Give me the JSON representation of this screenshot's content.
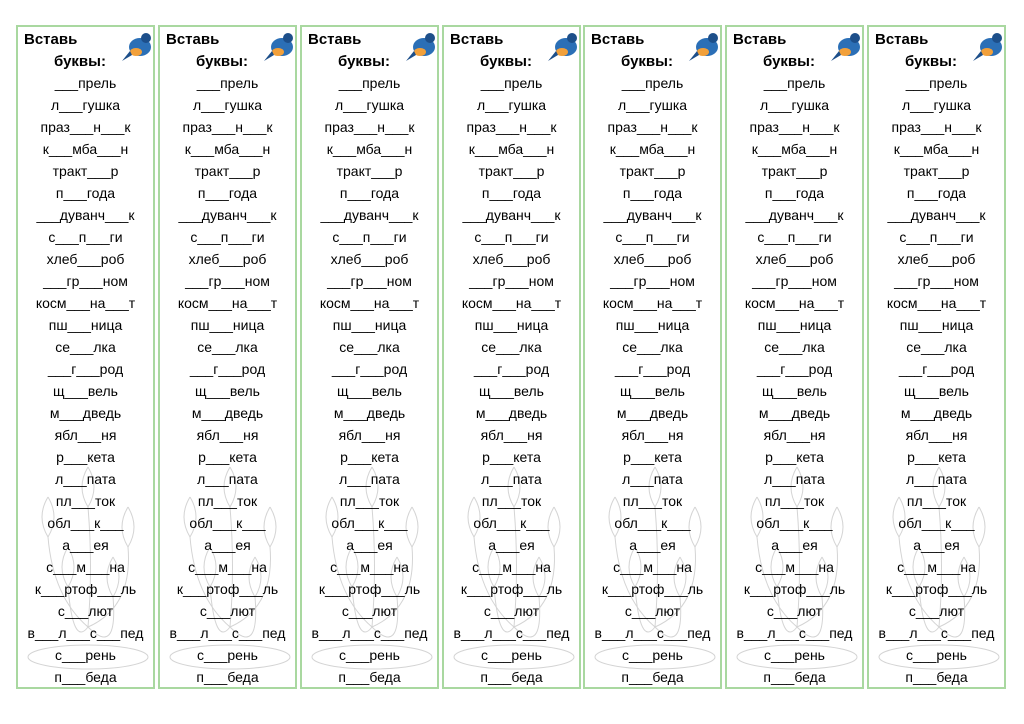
{
  "card": {
    "title_line1": "Вставь",
    "title_line2": "буквы:",
    "words": [
      "___прель",
      "л___гушка",
      "праз___н___к",
      "к___мба___н",
      "тракт___р",
      "п___года",
      "___дуванч___к",
      "с___п___ги",
      "хлеб___роб",
      "___гр___ном",
      "косм___на___т",
      "пш___ница",
      "се___лка",
      "___г___род",
      "щ___вель",
      "м___дведь",
      "ябл___ня",
      "р___кета",
      "л___пата",
      "пл___ток",
      "обл___к___",
      "а___ея",
      "с___м___на",
      "к___ртоф___ль",
      "с___лют",
      "в___л___с___пед",
      "с___рень",
      "п___беда"
    ]
  }
}
